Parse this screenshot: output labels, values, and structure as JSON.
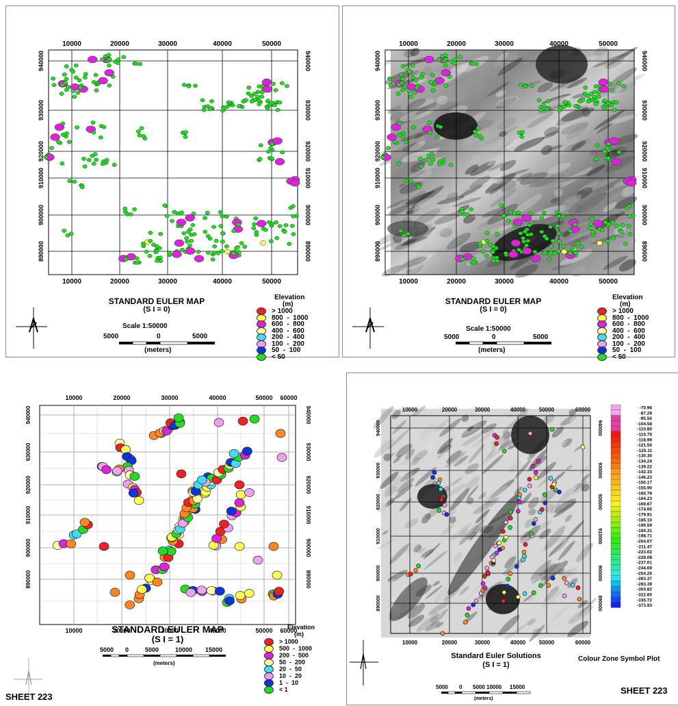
{
  "colors": {
    "green": "#22dd22",
    "magenta": "#dd22dd",
    "red": "#ee2222",
    "yellow": "#ffff55",
    "pale_yellow": "#ffffaa",
    "cyan": "#44ddee",
    "pink": "#f0a0f0",
    "blue": "#1133dd",
    "orange": "#ff8822"
  },
  "panel1": {
    "x_ticks": [
      "10000",
      "20000",
      "30000",
      "40000",
      "50000"
    ],
    "y_ticks": [
      "940000",
      "930000",
      "920000",
      "910000",
      "900000",
      "890000"
    ],
    "title": "STANDARD EULER MAP",
    "subtitle": "(S I = 0)",
    "scale": "Scale 1:50000",
    "scalebar": [
      "5000",
      "0",
      "5000"
    ],
    "scale_unit": "(meters)",
    "legend_title": "Elevation",
    "legend_unit": "(m)",
    "legend": [
      {
        "label": "> 1000",
        "color": "#ee2222"
      },
      {
        "label": "800  -  1000",
        "color": "#ffff55"
      },
      {
        "label": "600  -  800",
        "color": "#dd22dd"
      },
      {
        "label": "400  -  600",
        "color": "#ffffaa"
      },
      {
        "label": "200  -  400",
        "color": "#44ddee"
      },
      {
        "label": "100  -  200",
        "color": "#f0a0f0"
      },
      {
        "label": "50  -  100",
        "color": "#1133dd"
      },
      {
        "label": "< 50",
        "color": "#22dd22"
      }
    ]
  },
  "panel2": {
    "x_ticks": [
      "10000",
      "20000",
      "30000",
      "40000",
      "50000"
    ],
    "y_ticks": [
      "940000",
      "930000",
      "920000",
      "910000",
      "900000",
      "890000"
    ],
    "title": "STANDARD EULER MAP",
    "subtitle": "(S I = 0)",
    "scale": "Scale 1:50000",
    "scalebar": [
      "5000",
      "0",
      "5000"
    ],
    "scale_unit": "(meters)",
    "legend_title": "Elevation",
    "legend_unit": "(m)",
    "legend": [
      {
        "label": "> 1000",
        "color": "#ee2222"
      },
      {
        "label": "800  -  1000",
        "color": "#ffff55"
      },
      {
        "label": "600  -  800",
        "color": "#dd22dd"
      },
      {
        "label": "400  -  600",
        "color": "#ffffaa"
      },
      {
        "label": "200  -  400",
        "color": "#44ddee"
      },
      {
        "label": "100  -  200",
        "color": "#f0a0f0"
      },
      {
        "label": "50  -  100",
        "color": "#1133dd"
      },
      {
        "label": "< 50",
        "color": "#22dd22"
      }
    ]
  },
  "panel3": {
    "x_ticks": [
      "10000",
      "20000",
      "30000",
      "40000",
      "50000",
      "60000"
    ],
    "y_ticks": [
      "940000",
      "930000",
      "920000",
      "910000",
      "900000",
      "890000"
    ],
    "title": "STANDARD EULER MAP",
    "subtitle": "(S I = 1)",
    "scalebar": [
      "5000",
      "0",
      "5000",
      "10000",
      "15000"
    ],
    "scale_unit": "(meters)",
    "legend_title": "Elevation",
    "legend_unit": "(m)",
    "legend": [
      {
        "label": "> 1000",
        "color": "#ee2222"
      },
      {
        "label": "500  -  1000",
        "color": "#ffff55"
      },
      {
        "label": "200  -  500",
        "color": "#dd22dd"
      },
      {
        "label": "50  -  200",
        "color": "#ffffaa"
      },
      {
        "label": "20  -  50",
        "color": "#44ddee"
      },
      {
        "label": "10  -  20",
        "color": "#f0a0f0"
      },
      {
        "label": "1  -  10",
        "color": "#1133dd"
      },
      {
        "label": "< 1",
        "color": "#22dd22"
      }
    ],
    "sheet": "SHEET 223"
  },
  "panel4": {
    "x_ticks": [
      "10000",
      "20000",
      "30000",
      "40000",
      "50000",
      "60000"
    ],
    "y_ticks": [
      "940000",
      "930000",
      "920000",
      "910000",
      "900000",
      "890000"
    ],
    "title": "Standard Euler Solutions",
    "subtitle": "(S I = 1)",
    "scalebar": [
      "5000",
      "0",
      "5000",
      "10000",
      "15000"
    ],
    "scale_unit": "(meters)",
    "colour_title": "Colour Zone Symbol Plot",
    "colour_values": [
      "-70.96",
      "-87.29",
      "-95.50",
      "-104.58",
      "-110.80",
      "-115.75",
      "-118.99",
      "-121.50",
      "-125.11",
      "-130.30",
      "-134.24",
      "-139.22",
      "-142.33",
      "-146.23",
      "-150.17",
      "-155.90",
      "-160.79",
      "-164.23",
      "-169.67",
      "-174.60",
      "-179.91",
      "-185.10",
      "-190.59",
      "-194.31",
      "-198.71",
      "-204.67",
      "-211.47",
      "-223.02",
      "-228.08",
      "-237.01",
      "-244.69",
      "-254.25",
      "-263.37",
      "-283.39",
      "-303.82",
      "-322.60",
      "-335.72",
      "-373.93"
    ],
    "sheet": "SHEET 223"
  }
}
